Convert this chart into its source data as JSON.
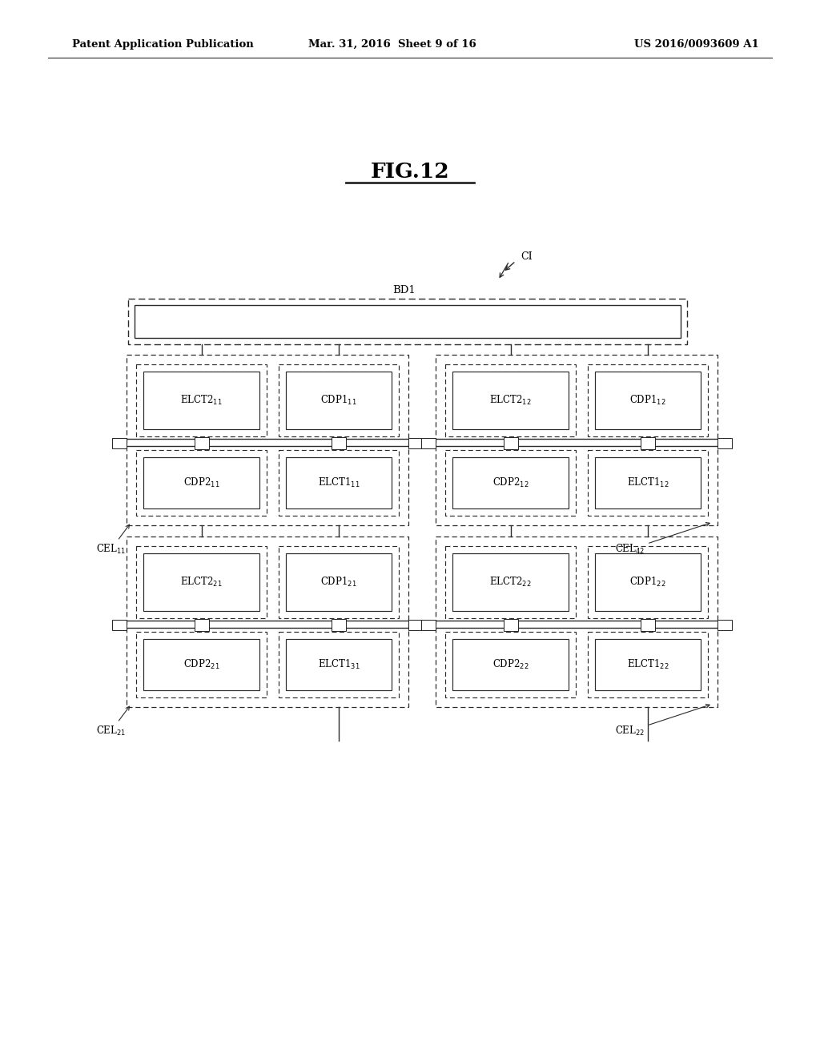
{
  "bg_color": "#ffffff",
  "line_color": "#2a2a2a",
  "header_left": "Patent Application Publication",
  "header_center": "Mar. 31, 2016  Sheet 9 of 16",
  "header_right": "US 2016/0093609 A1",
  "fig_title": "FIG.12",
  "fig_width": 10.24,
  "fig_height": 13.2,
  "bd1_label": "BD1",
  "ci_label": "CI",
  "row1_top_labels": [
    "ELCT2_{11}",
    "CDP1_{11}",
    "ELCT2_{12}",
    "CDP1_{12}"
  ],
  "row1_bot_labels": [
    "CDP2_{11}",
    "ELCT1_{11}",
    "CDP2_{12}",
    "ELCT1_{12}"
  ],
  "row2_top_labels": [
    "ELCT2_{21}",
    "CDP1_{21}",
    "ELCT2_{22}",
    "CDP1_{22}"
  ],
  "row2_bot_labels": [
    "CDP2_{21}",
    "ELCT1_{31}",
    "CDP2_{22}",
    "ELCT1_{22}"
  ],
  "cel_labels": [
    "CEL$_{11}$",
    "CEL$_{42}$",
    "CEL$_{21}$",
    "CEL$_{22}$"
  ]
}
